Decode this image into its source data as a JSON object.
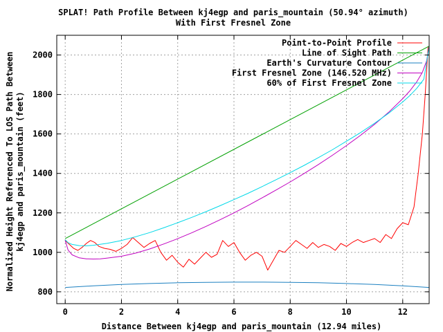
{
  "chart_data": {
    "type": "line",
    "title": "SPLAT! Path Profile Between kj4egp and paris_mountain (50.94° azimuth)",
    "subtitle": "With First Fresnel Zone",
    "xlabel": "Distance Between kj4egp and paris_mountain (12.94 miles)",
    "ylabel_line1": "Normalized Height Referenced To LOS Path Between",
    "ylabel_line2": "kj4egp and paris_mountain (feet)",
    "xlim": [
      -0.3,
      12.94
    ],
    "ylim": [
      740,
      2100
    ],
    "x_ticks": [
      0,
      2,
      4,
      6,
      8,
      10,
      12
    ],
    "x_tick_labels": [
      "0",
      "2",
      "4",
      "6",
      "8",
      "10",
      "12"
    ],
    "y_ticks": [
      800,
      1000,
      1200,
      1400,
      1600,
      1800,
      2000
    ],
    "y_tick_labels": [
      "800",
      "1000",
      "1200",
      "1400",
      "1600",
      "1800",
      "2000"
    ],
    "grid": true,
    "legend_position": "top-right",
    "series": [
      {
        "name": "Point-to-Point Profile",
        "color": "#ff0000",
        "x": [
          0,
          0.15,
          0.3,
          0.45,
          0.6,
          0.75,
          0.9,
          1.05,
          1.2,
          1.4,
          1.6,
          1.8,
          2.0,
          2.2,
          2.4,
          2.6,
          2.8,
          3.0,
          3.2,
          3.4,
          3.6,
          3.8,
          4.0,
          4.2,
          4.4,
          4.6,
          4.8,
          5.0,
          5.2,
          5.4,
          5.6,
          5.8,
          6.0,
          6.2,
          6.4,
          6.6,
          6.8,
          7.0,
          7.2,
          7.4,
          7.6,
          7.8,
          8.0,
          8.2,
          8.4,
          8.6,
          8.8,
          9.0,
          9.2,
          9.4,
          9.6,
          9.8,
          10.0,
          10.2,
          10.4,
          10.6,
          10.8,
          11.0,
          11.2,
          11.4,
          11.6,
          11.8,
          12.0,
          12.2,
          12.4,
          12.55,
          12.7,
          12.8,
          12.9
        ],
        "y": [
          1060,
          1040,
          1020,
          1010,
          1025,
          1045,
          1060,
          1050,
          1030,
          1020,
          1015,
          1005,
          1020,
          1040,
          1075,
          1050,
          1025,
          1045,
          1060,
          1000,
          960,
          985,
          950,
          925,
          965,
          940,
          970,
          1000,
          975,
          990,
          1060,
          1030,
          1050,
          1000,
          960,
          985,
          1000,
          980,
          910,
          960,
          1010,
          1000,
          1030,
          1060,
          1040,
          1020,
          1050,
          1025,
          1040,
          1030,
          1010,
          1045,
          1030,
          1050,
          1065,
          1050,
          1060,
          1070,
          1050,
          1090,
          1070,
          1120,
          1150,
          1140,
          1230,
          1400,
          1600,
          1800,
          2040
        ]
      },
      {
        "name": "Line of Sight Path",
        "color": "#00a000",
        "x": [
          0,
          12.94
        ],
        "y": [
          1070,
          2045
        ]
      },
      {
        "name": "Earth's Curvature Contour",
        "color": "#1a7fc0",
        "x": [
          0,
          1,
          2,
          3,
          4,
          5,
          6,
          7,
          8,
          9,
          10,
          11,
          12,
          12.94
        ],
        "y": [
          822,
          830,
          837,
          842,
          846,
          848,
          849,
          849,
          848,
          846,
          842,
          837,
          830,
          822
        ]
      },
      {
        "name": "First Fresnel Zone (146.520 MHz)",
        "color": "#c000c0",
        "x": [
          0,
          0.1,
          0.25,
          0.5,
          0.75,
          1.0,
          1.25,
          1.5,
          2.0,
          2.5,
          3.0,
          3.5,
          4.0,
          4.5,
          5.0,
          5.5,
          6.0,
          6.5,
          7.0,
          7.5,
          8.0,
          8.5,
          9.0,
          9.5,
          10.0,
          10.5,
          11.0,
          11.5,
          12.0,
          12.25,
          12.5,
          12.7,
          12.85,
          12.94
        ],
        "y": [
          1060,
          1012,
          987,
          972,
          967,
          966,
          967,
          971,
          980,
          996,
          1017,
          1042,
          1069,
          1099,
          1131,
          1165,
          1200,
          1237,
          1276,
          1316,
          1357,
          1400,
          1445,
          1492,
          1541,
          1593,
          1649,
          1710,
          1779,
          1818,
          1864,
          1912,
          1970,
          2045
        ]
      },
      {
        "name": "60% of First Fresnel Zone",
        "color": "#00d8e8",
        "x": [
          0,
          0.1,
          0.25,
          0.5,
          0.75,
          1.0,
          1.5,
          2.0,
          2.5,
          3.0,
          3.5,
          4.0,
          4.5,
          5.0,
          5.5,
          6.0,
          6.5,
          7.0,
          7.5,
          8.0,
          8.5,
          9.0,
          9.5,
          10.0,
          10.5,
          11.0,
          11.5,
          12.0,
          12.25,
          12.5,
          12.75,
          12.94
        ],
        "y": [
          1064,
          1049,
          1040,
          1034,
          1033,
          1036,
          1046,
          1060,
          1079,
          1100,
          1124,
          1150,
          1177,
          1206,
          1236,
          1267,
          1299,
          1333,
          1368,
          1404,
          1441,
          1480,
          1520,
          1563,
          1607,
          1654,
          1705,
          1762,
          1794,
          1831,
          1877,
          2045
        ]
      }
    ]
  }
}
